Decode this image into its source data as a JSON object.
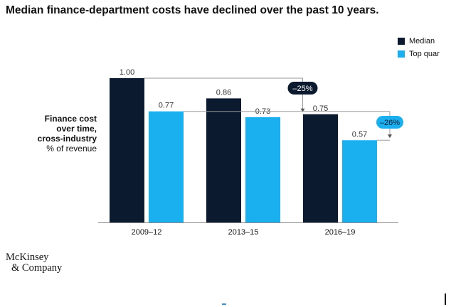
{
  "title": "Median finance-department costs have declined over the past 10 years.",
  "legend": [
    {
      "label": "Median",
      "color": "#0b1a2e"
    },
    {
      "label": "Top quar",
      "color": "#1ab0ef"
    }
  ],
  "y_label": {
    "line1": "Finance cost",
    "line2": "over time,",
    "line3": "cross-industry",
    "line4": "% of revenue"
  },
  "brand": {
    "line1": "McKinsey",
    "line2": "& Company"
  },
  "chart_data": {
    "type": "bar",
    "title": "Median finance-department costs have declined over the past 10 years.",
    "ylabel": "Finance cost over time, cross-industry, % of revenue",
    "categories": [
      "2009–12",
      "2013–15",
      "2016–19"
    ],
    "series": [
      {
        "name": "Median",
        "values": [
          1.0,
          0.86,
          0.75
        ],
        "labels": [
          "1.00",
          "0.86",
          "0.75"
        ],
        "color": "#0b1a2e"
      },
      {
        "name": "Top quar",
        "values": [
          0.77,
          0.73,
          0.57
        ],
        "labels": [
          "0.77",
          "0.73",
          "0.57"
        ],
        "color": "#1ab0ef"
      }
    ],
    "ylim": [
      0,
      1.0
    ],
    "annotations": [
      {
        "label": "–25%",
        "series": "Median",
        "from_value": 1.0,
        "to_value": 0.75
      },
      {
        "label": "–26%",
        "series": "Top quar",
        "from_value": 0.77,
        "to_value": 0.57
      }
    ]
  }
}
